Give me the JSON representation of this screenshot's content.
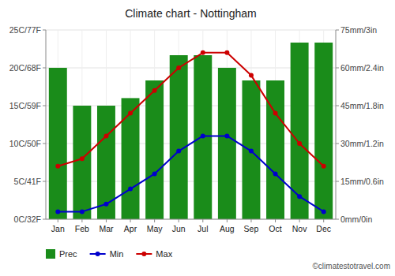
{
  "chart_data": {
    "type": "bar",
    "title": "Climate chart - Nottingham",
    "categories": [
      "Jan",
      "Feb",
      "Mar",
      "Apr",
      "May",
      "Jun",
      "Jul",
      "Aug",
      "Sep",
      "Oct",
      "Nov",
      "Dec"
    ],
    "series": [
      {
        "name": "Prec",
        "type": "bar",
        "axis": "y2",
        "color": "#1a8c1a",
        "values": [
          60,
          45,
          45,
          48,
          55,
          65,
          65,
          60,
          55,
          55,
          70,
          70
        ]
      },
      {
        "name": "Min",
        "type": "line",
        "marker": "circle",
        "color": "#0000cc",
        "values": [
          1,
          1,
          2,
          4,
          6,
          9,
          11,
          11,
          9,
          6,
          3,
          1
        ]
      },
      {
        "name": "Max",
        "type": "line",
        "marker": "circle",
        "color": "#cc0000",
        "values": [
          7,
          8,
          11,
          14,
          17,
          20,
          22,
          22,
          19,
          14,
          10,
          7
        ]
      }
    ],
    "ylim": [
      0,
      25
    ],
    "yticks": [
      {
        "value": 0,
        "label": "0C/32F"
      },
      {
        "value": 5,
        "label": "5C/41F"
      },
      {
        "value": 10,
        "label": "10C/50F"
      },
      {
        "value": 15,
        "label": "15C/59F"
      },
      {
        "value": 20,
        "label": "20C/68F"
      },
      {
        "value": 25,
        "label": "25C/77F"
      }
    ],
    "y2lim": [
      0,
      75
    ],
    "y2ticks": [
      {
        "value": 0,
        "label": "0mm/0in"
      },
      {
        "value": 15,
        "label": "15mm/0.6in"
      },
      {
        "value": 30,
        "label": "30mm/1.2in"
      },
      {
        "value": 45,
        "label": "45mm/1.8in"
      },
      {
        "value": 60,
        "label": "60mm/2.4in"
      },
      {
        "value": 75,
        "label": "75mm/3in"
      }
    ],
    "grid": true,
    "legend": "bottom",
    "annotations": [
      "©climatestotravel.com"
    ]
  }
}
